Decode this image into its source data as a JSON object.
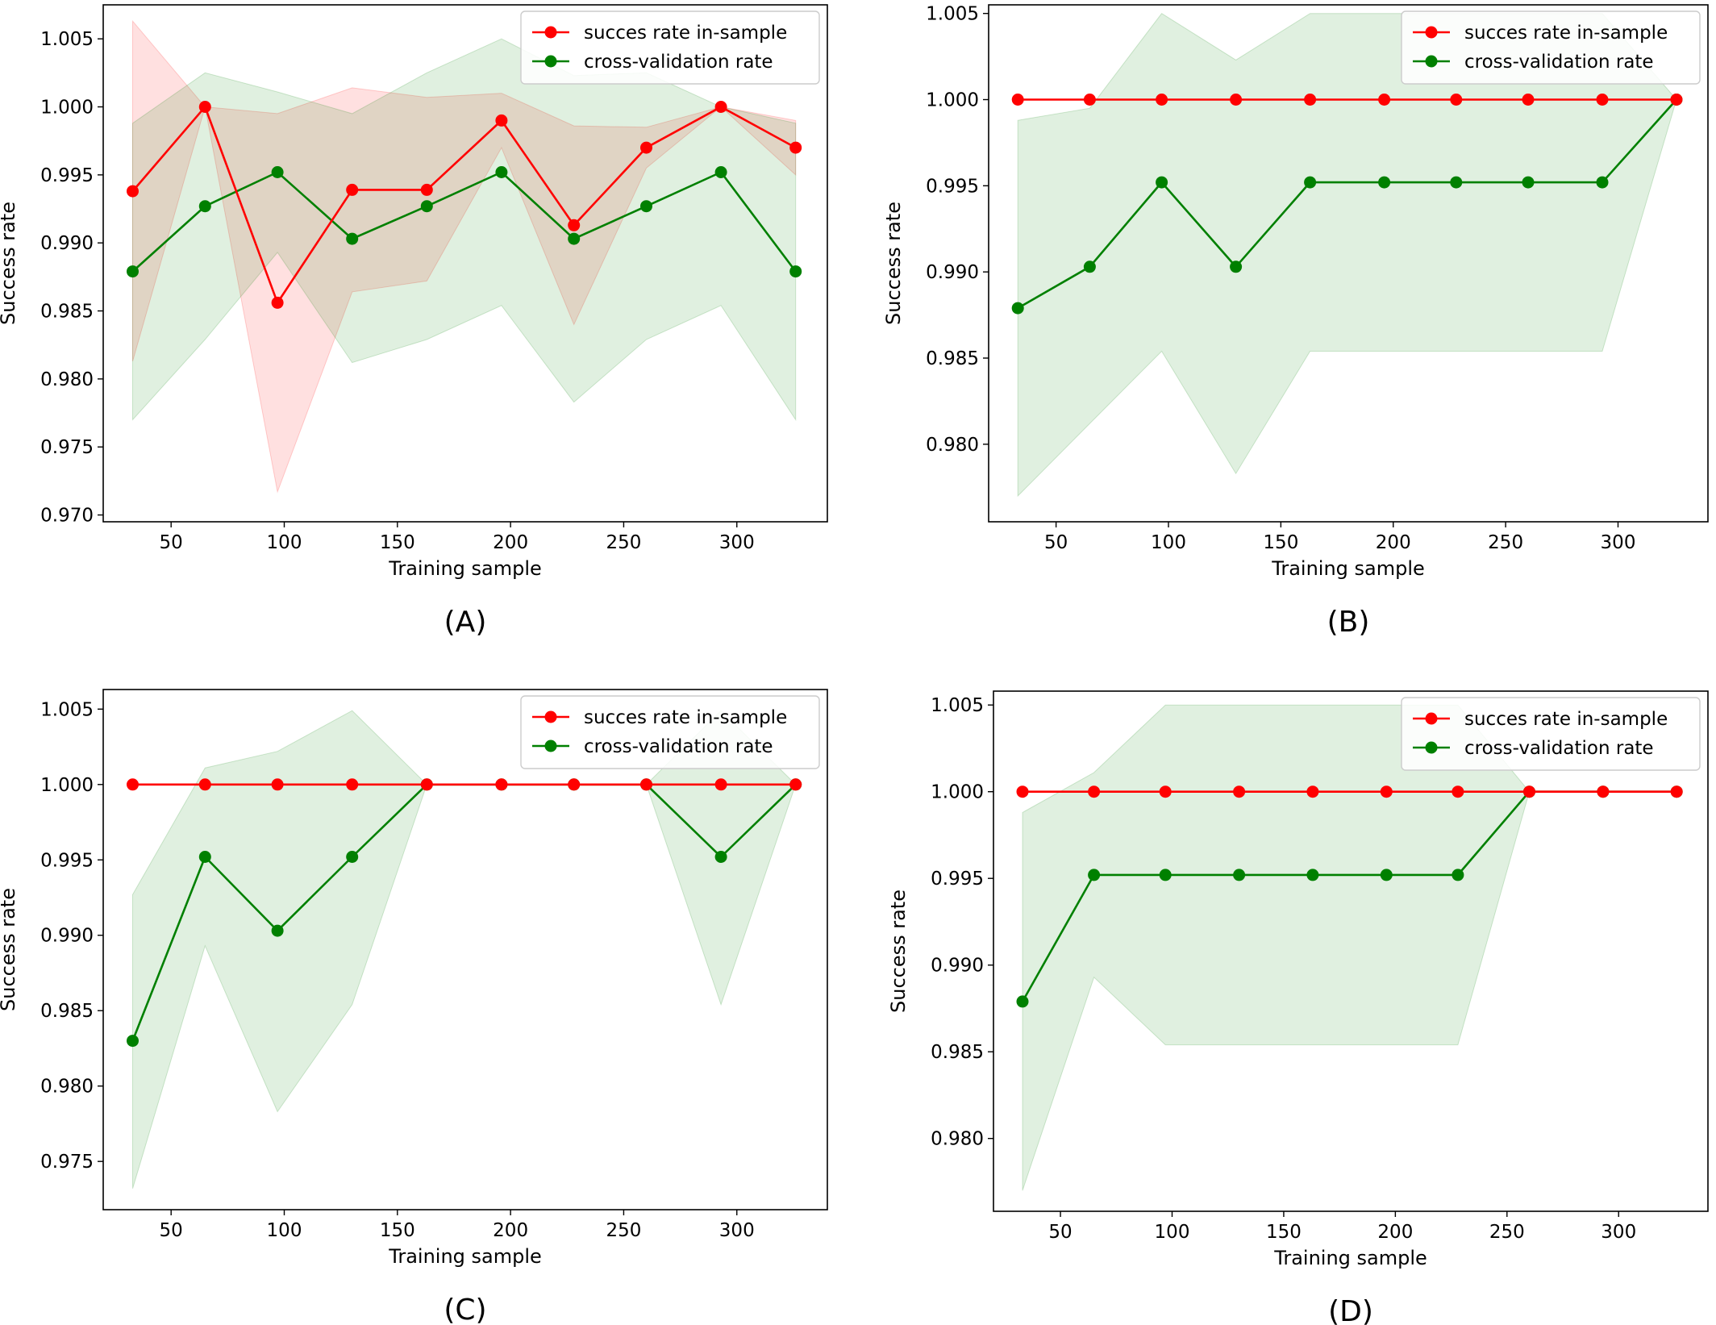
{
  "figure": {
    "chart_data": [
      {
        "panel_label": "(A)",
        "type": "line",
        "xlabel": "Training sample",
        "ylabel": "Success rate",
        "xlim": [
          20,
          340
        ],
        "ylim": [
          0.9695,
          1.0075
        ],
        "xticks": [
          50,
          100,
          150,
          200,
          250,
          300
        ],
        "yticks": [
          0.97,
          0.975,
          0.98,
          0.985,
          0.99,
          0.995,
          1.0,
          1.005
        ],
        "legend": "top-right",
        "x": [
          33,
          65,
          97,
          130,
          163,
          196,
          228,
          260,
          293,
          326
        ],
        "series": [
          {
            "name": "succes rate in-sample",
            "color": "#ff0000",
            "values": [
              0.9938,
              1.0,
              0.9856,
              0.9939,
              0.9939,
              0.999,
              0.9913,
              0.997,
              1.0,
              0.997
            ],
            "band_upper": [
              1.0063,
              1.0,
              0.9995,
              1.0014,
              1.0007,
              1.001,
              0.9986,
              0.9985,
              1.0,
              0.999
            ],
            "band_lower": [
              0.9813,
              1.0,
              0.9717,
              0.9864,
              0.9872,
              0.997,
              0.984,
              0.9955,
              1.0,
              0.995
            ]
          },
          {
            "name": "cross-validation rate",
            "color": "#008000",
            "values": [
              0.9879,
              0.9927,
              0.9952,
              0.9903,
              0.9927,
              0.9952,
              0.9903,
              0.9927,
              0.9952,
              0.9879
            ],
            "band_upper": [
              0.9988,
              1.0025,
              1.0011,
              0.9995,
              1.0025,
              1.005,
              1.0023,
              1.0025,
              1.0,
              0.9988
            ],
            "band_lower": [
              0.977,
              0.9829,
              0.9893,
              0.9812,
              0.9829,
              0.9854,
              0.9783,
              0.9829,
              0.9854,
              0.977
            ]
          }
        ]
      },
      {
        "panel_label": "(B)",
        "type": "line",
        "xlabel": "Training sample",
        "ylabel": "Success rate",
        "xlim": [
          20,
          340
        ],
        "ylim": [
          0.9755,
          1.0055
        ],
        "xticks": [
          50,
          100,
          150,
          200,
          250,
          300
        ],
        "yticks": [
          0.98,
          0.985,
          0.99,
          0.995,
          1.0,
          1.005
        ],
        "legend": "top-right",
        "x": [
          33,
          65,
          97,
          130,
          163,
          196,
          228,
          260,
          293,
          326
        ],
        "series": [
          {
            "name": "succes rate in-sample",
            "color": "#ff0000",
            "values": [
              1.0,
              1.0,
              1.0,
              1.0,
              1.0,
              1.0,
              1.0,
              1.0,
              1.0,
              1.0
            ],
            "band_upper": [
              1.0,
              1.0,
              1.0,
              1.0,
              1.0,
              1.0,
              1.0,
              1.0,
              1.0,
              1.0
            ],
            "band_lower": [
              1.0,
              1.0,
              1.0,
              1.0,
              1.0,
              1.0,
              1.0,
              1.0,
              1.0,
              1.0
            ]
          },
          {
            "name": "cross-validation rate",
            "color": "#008000",
            "values": [
              0.9879,
              0.9903,
              0.9952,
              0.9903,
              0.9952,
              0.9952,
              0.9952,
              0.9952,
              0.9952,
              1.0
            ],
            "band_upper": [
              0.9988,
              0.9995,
              1.005,
              1.0023,
              1.005,
              1.005,
              1.005,
              1.005,
              1.005,
              1.0
            ],
            "band_lower": [
              0.977,
              0.9812,
              0.9854,
              0.9783,
              0.9854,
              0.9854,
              0.9854,
              0.9854,
              0.9854,
              1.0
            ]
          }
        ]
      },
      {
        "panel_label": "(C)",
        "type": "line",
        "xlabel": "Training sample",
        "ylabel": "Success rate",
        "xlim": [
          20,
          340
        ],
        "ylim": [
          0.9718,
          1.0063
        ],
        "xticks": [
          50,
          100,
          150,
          200,
          250,
          300
        ],
        "yticks": [
          0.975,
          0.98,
          0.985,
          0.99,
          0.995,
          1.0,
          1.005
        ],
        "legend": "top-right",
        "x": [
          33,
          65,
          97,
          130,
          163,
          196,
          228,
          260,
          293,
          326
        ],
        "series": [
          {
            "name": "succes rate in-sample",
            "color": "#ff0000",
            "values": [
              1.0,
              1.0,
              1.0,
              1.0,
              1.0,
              1.0,
              1.0,
              1.0,
              1.0,
              1.0
            ],
            "band_upper": [
              1.0,
              1.0,
              1.0,
              1.0,
              1.0,
              1.0,
              1.0,
              1.0,
              1.0,
              1.0
            ],
            "band_lower": [
              1.0,
              1.0,
              1.0,
              1.0,
              1.0,
              1.0,
              1.0,
              1.0,
              1.0,
              1.0
            ]
          },
          {
            "name": "cross-validation rate",
            "color": "#008000",
            "values": [
              0.983,
              0.9952,
              0.9903,
              0.9952,
              1.0,
              1.0,
              1.0,
              1.0,
              0.9952,
              1.0
            ],
            "band_upper": [
              0.9927,
              1.0011,
              1.0022,
              1.0049,
              1.0,
              1.0,
              1.0,
              1.0,
              1.0049,
              1.0
            ],
            "band_lower": [
              0.9732,
              0.9893,
              0.9783,
              0.9854,
              1.0,
              1.0,
              1.0,
              1.0,
              0.9854,
              1.0
            ]
          }
        ]
      },
      {
        "panel_label": "(D)",
        "type": "line",
        "xlabel": "Training sample",
        "ylabel": "Success rate",
        "xlim": [
          20,
          340
        ],
        "ylim": [
          0.9758,
          1.0058
        ],
        "xticks": [
          50,
          100,
          150,
          200,
          250,
          300
        ],
        "yticks": [
          0.98,
          0.985,
          0.99,
          0.995,
          1.0,
          1.005
        ],
        "legend": "top-right",
        "x": [
          33,
          65,
          97,
          130,
          163,
          196,
          228,
          260,
          293,
          326
        ],
        "series": [
          {
            "name": "succes rate in-sample",
            "color": "#ff0000",
            "values": [
              1.0,
              1.0,
              1.0,
              1.0,
              1.0,
              1.0,
              1.0,
              1.0,
              1.0,
              1.0
            ],
            "band_upper": [
              1.0,
              1.0,
              1.0,
              1.0,
              1.0,
              1.0,
              1.0,
              1.0,
              1.0,
              1.0
            ],
            "band_lower": [
              1.0,
              1.0,
              1.0,
              1.0,
              1.0,
              1.0,
              1.0,
              1.0,
              1.0,
              1.0
            ]
          },
          {
            "name": "cross-validation rate",
            "color": "#008000",
            "values": [
              0.9879,
              0.9952,
              0.9952,
              0.9952,
              0.9952,
              0.9952,
              0.9952,
              1.0,
              1.0,
              1.0
            ],
            "band_upper": [
              0.9988,
              1.0011,
              1.005,
              1.005,
              1.005,
              1.005,
              1.005,
              1.0,
              1.0,
              1.0
            ],
            "band_lower": [
              0.977,
              0.9893,
              0.9854,
              0.9854,
              0.9854,
              0.9854,
              0.9854,
              1.0,
              1.0,
              1.0
            ]
          }
        ]
      }
    ],
    "band_fill_colors": {
      "succes rate in-sample": "#ff0000",
      "cross-validation rate": "#008000"
    },
    "band_fill_opacity": 0.12
  }
}
